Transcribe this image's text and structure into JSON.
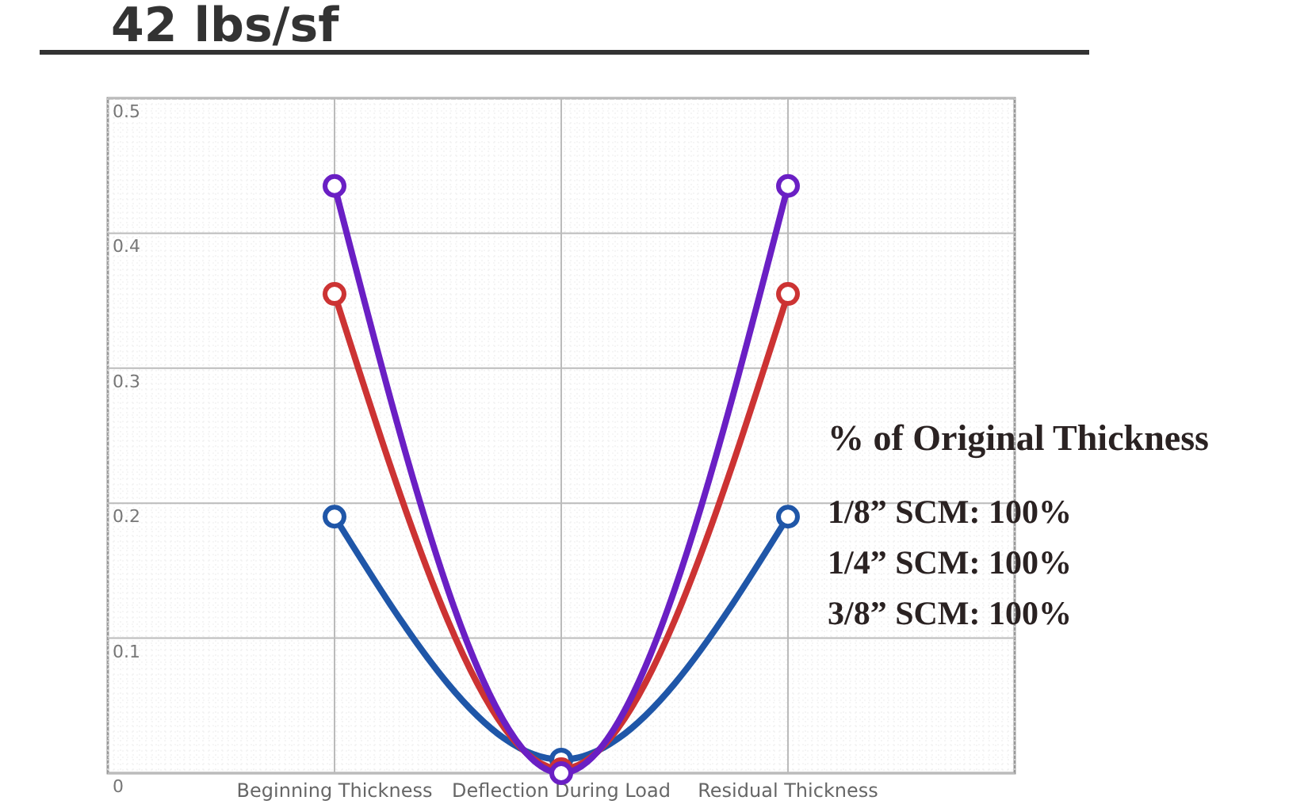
{
  "chart_data": {
    "type": "line",
    "title": "42 lbs/sf",
    "categories": [
      "Beginning Thickness",
      "Deflection During Load",
      "Residual Thickness"
    ],
    "series": [
      {
        "color": "#1f56a8",
        "values": [
          0.19,
          0.01,
          0.19
        ]
      },
      {
        "color": "#cc3333",
        "values": [
          0.355,
          0.003,
          0.355
        ]
      },
      {
        "color": "#6a1fc4",
        "values": [
          0.435,
          0,
          0.435
        ]
      }
    ],
    "ylim": [
      0,
      0.5
    ],
    "yticks": [
      {
        "value": 0,
        "label": "0"
      },
      0.1,
      0.2,
      0.3,
      0.4,
      0.5
    ],
    "grid": true,
    "marker": "circle",
    "line_style": "solid",
    "annotations": [
      "% of Original Thickness",
      "1/8” SCM: 100%",
      "1/4” SCM: 100%",
      "3/8” SCM: 100%"
    ]
  }
}
